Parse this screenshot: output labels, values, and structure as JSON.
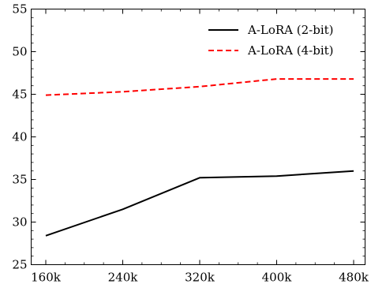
{
  "chart_data": {
    "type": "line",
    "x": [
      "160k",
      "240k",
      "320k",
      "400k",
      "480k"
    ],
    "series": [
      {
        "name": "A-LoRA (2-bit)",
        "values": [
          28.4,
          31.5,
          35.2,
          35.4,
          36.0
        ],
        "color": "#000000",
        "dash": "solid"
      },
      {
        "name": "A-LoRA (4-bit)",
        "values": [
          44.9,
          45.3,
          45.9,
          46.8,
          46.8
        ],
        "color": "#ff0000",
        "dash": "dashed"
      }
    ],
    "ylim": [
      25,
      55
    ],
    "yticks": [
      "25",
      "30",
      "35",
      "40",
      "45",
      "50",
      "55"
    ],
    "xlabel": "",
    "ylabel": "",
    "title": "",
    "grid": false,
    "legend_position": "top-right"
  }
}
